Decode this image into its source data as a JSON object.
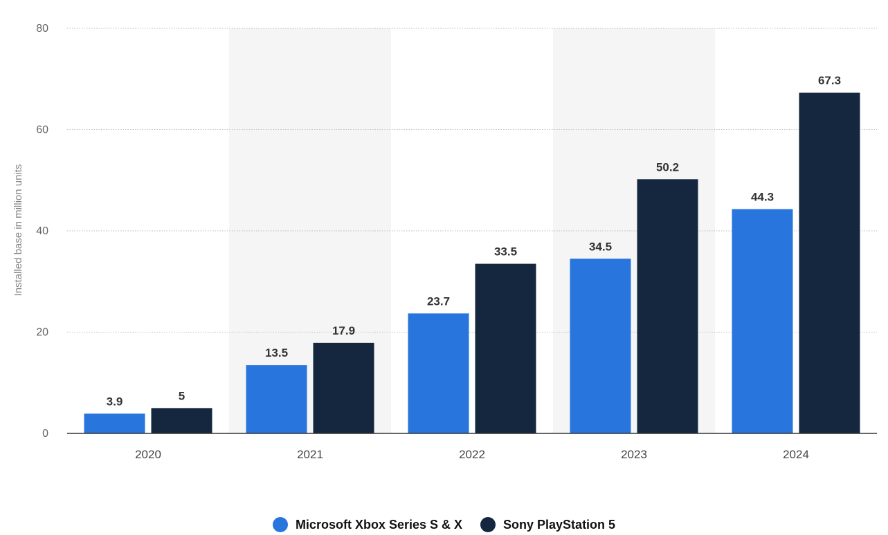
{
  "chart_data": {
    "type": "bar",
    "categories": [
      "2020",
      "2021",
      "2022",
      "2023",
      "2024"
    ],
    "series": [
      {
        "name": "Microsoft Xbox Series S & X",
        "values": [
          3.9,
          13.5,
          23.7,
          34.5,
          44.3
        ],
        "labels": [
          "3.9",
          "13.5",
          "23.7",
          "34.5",
          "44.3"
        ],
        "color": "#2876DD"
      },
      {
        "name": "Sony PlayStation 5",
        "values": [
          5,
          17.9,
          33.5,
          50.2,
          67.3
        ],
        "labels": [
          "5",
          "17.9",
          "33.5",
          "50.2",
          "67.3"
        ],
        "color": "#14273F"
      }
    ],
    "ylabel": "Installed base in million units",
    "xlabel": "",
    "ylim": [
      0,
      80
    ],
    "yticks": [
      "0",
      "20",
      "40",
      "60",
      "80"
    ],
    "grid": true,
    "alternating_band_color": "#F5F5F5",
    "legend_position": "bottom"
  }
}
